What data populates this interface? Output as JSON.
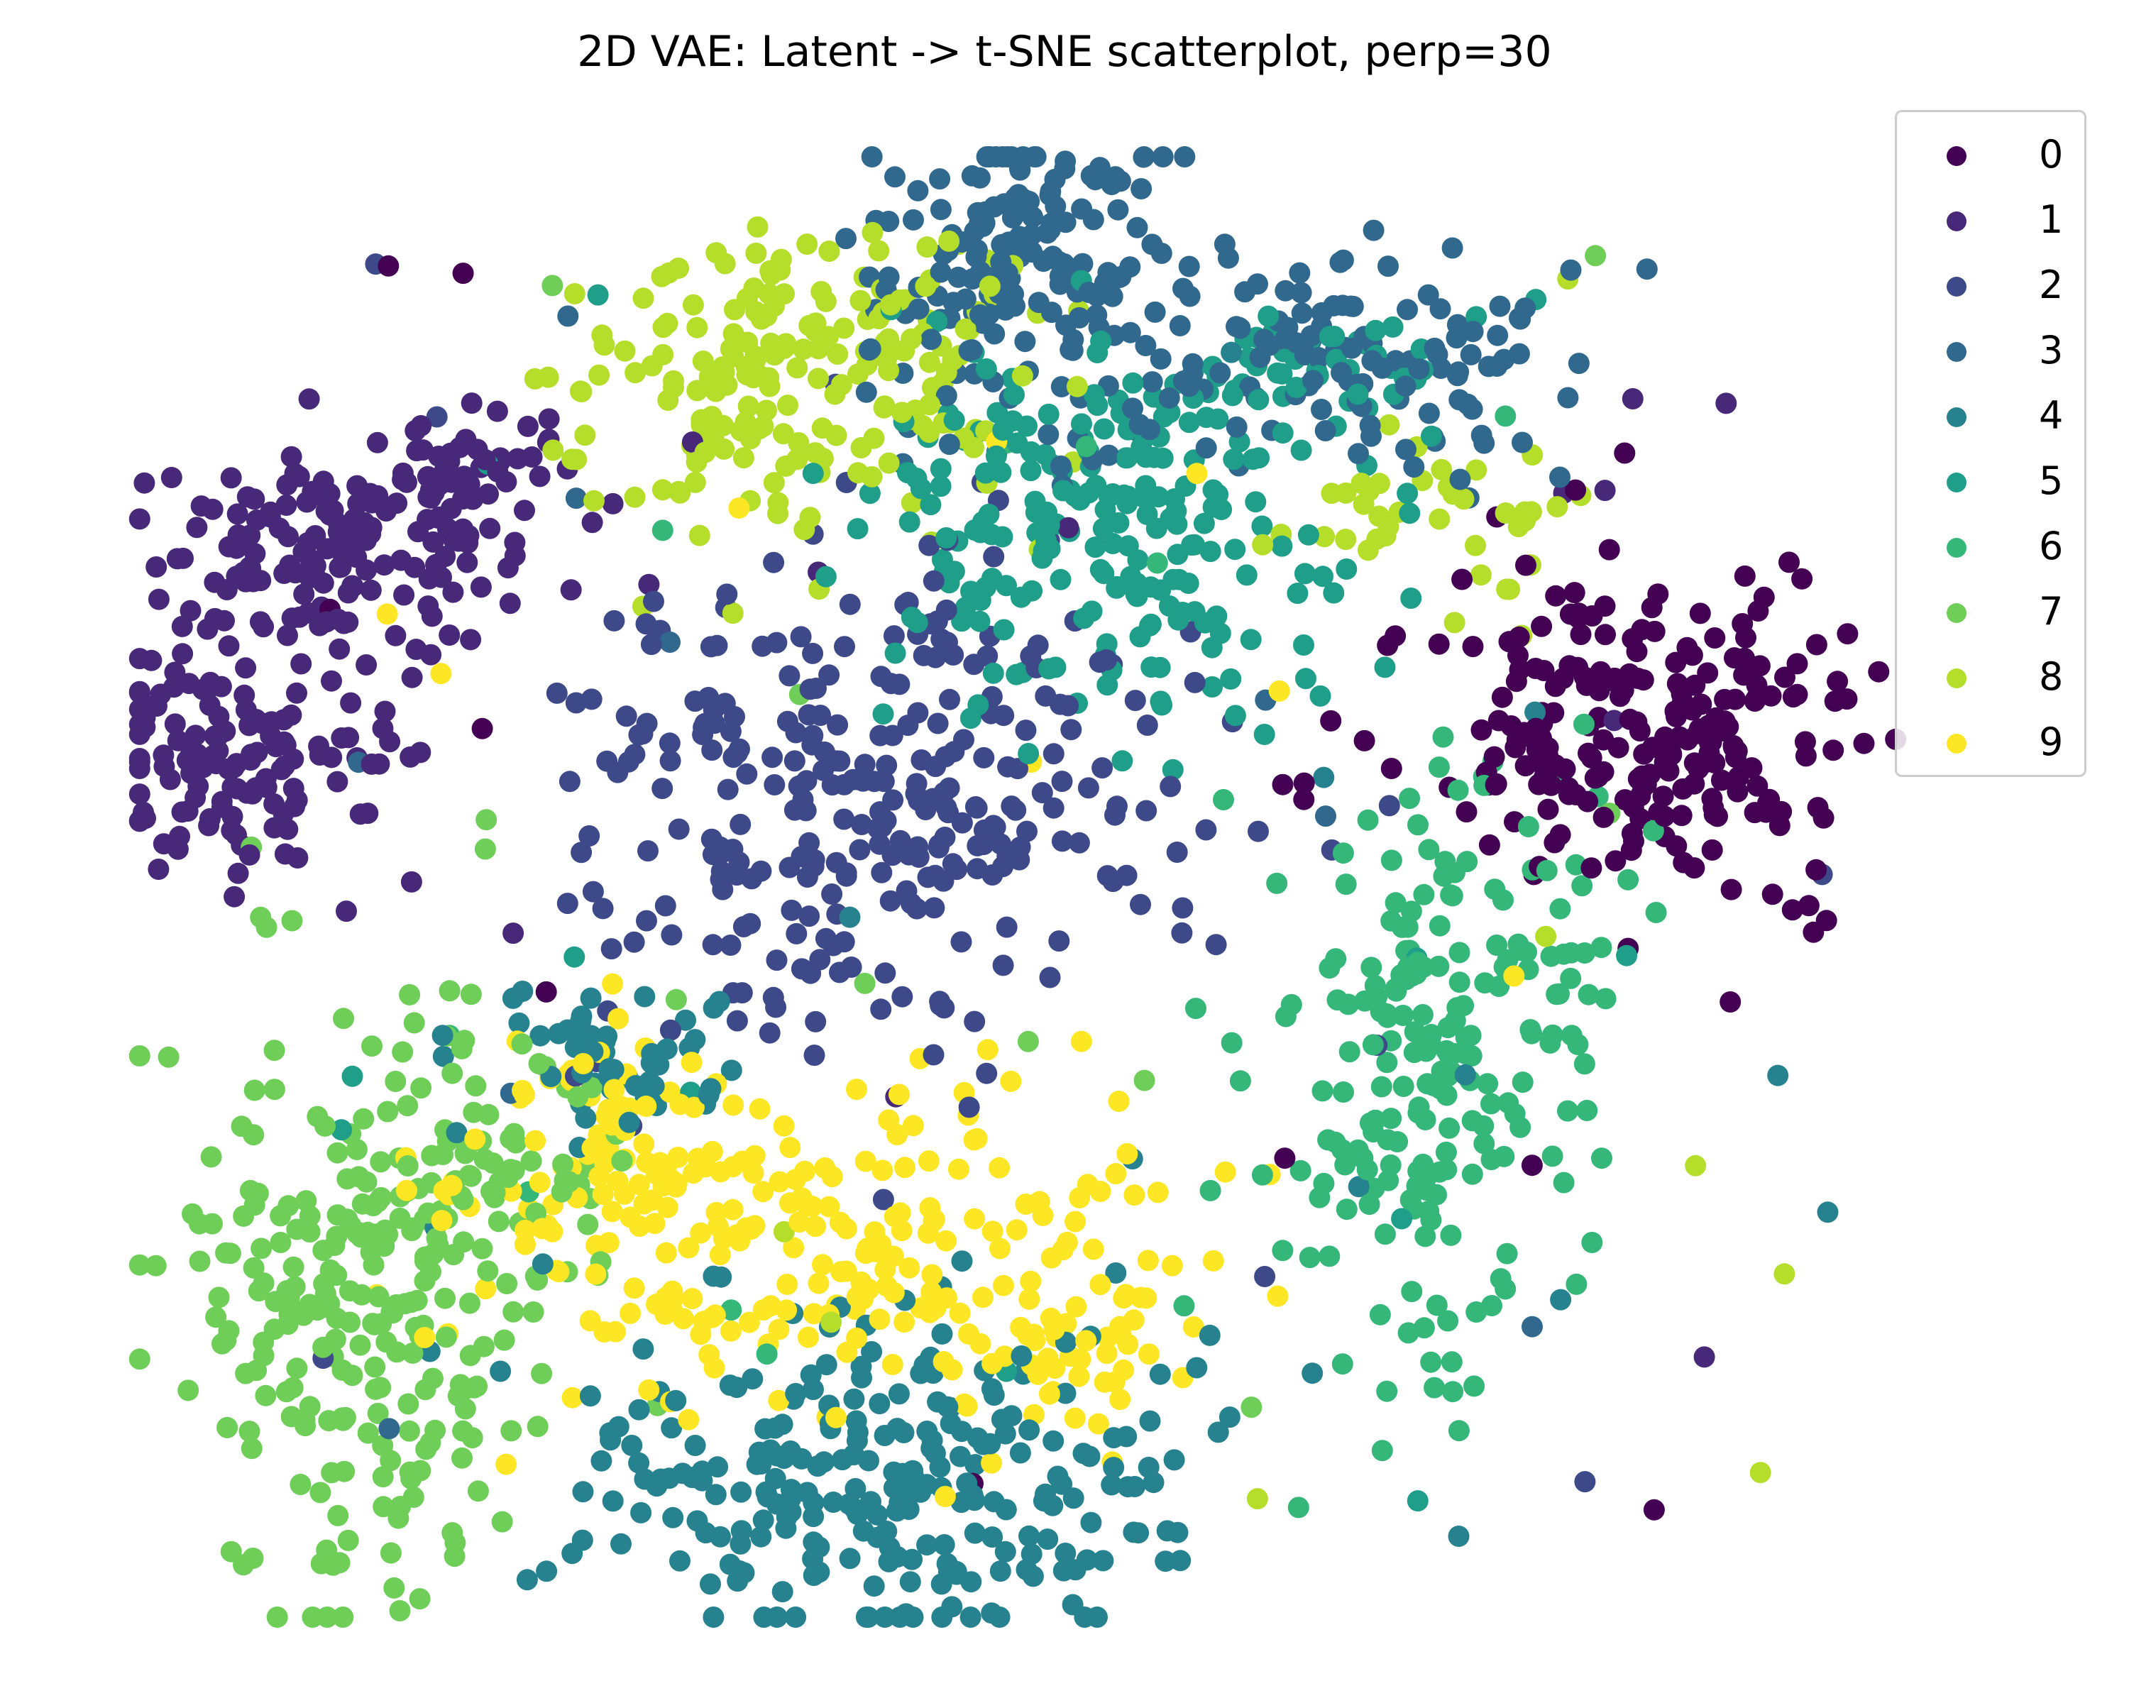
{
  "chart_data": {
    "type": "scatter",
    "title": "2D VAE: Latent -> t-SNE scatterplot, perp=30",
    "xlabel": "",
    "ylabel": "",
    "axes_visible": false,
    "grid": false,
    "legend_placement": "top-right",
    "colormap": "viridis",
    "xlim": [
      -100,
      100
    ],
    "ylim": [
      -100,
      100
    ],
    "series": [
      {
        "name": "0",
        "color": "#440154",
        "clusters": [
          {
            "cx": 58,
            "cy": 21,
            "sx": 13,
            "sy": 12,
            "n": 240
          }
        ]
      },
      {
        "name": "1",
        "color": "#482878",
        "clusters": [
          {
            "cx": -78,
            "cy": 45,
            "sx": 10,
            "sy": 8,
            "n": 160
          },
          {
            "cx": -88,
            "cy": 16,
            "sx": 8,
            "sy": 8,
            "n": 130
          },
          {
            "cx": -63,
            "cy": 56,
            "sx": 5,
            "sy": 4,
            "n": 40
          }
        ]
      },
      {
        "name": "2",
        "color": "#3e4989",
        "clusters": [
          {
            "cx": -20,
            "cy": 12,
            "sx": 15,
            "sy": 16,
            "n": 300
          }
        ]
      },
      {
        "name": "3",
        "color": "#31688e",
        "clusters": [
          {
            "cx": -5,
            "cy": 82,
            "sx": 9,
            "sy": 11,
            "n": 180
          },
          {
            "cx": 29,
            "cy": 72,
            "sx": 13,
            "sy": 8,
            "n": 120
          }
        ]
      },
      {
        "name": "4",
        "color": "#26828e",
        "clusters": [
          {
            "cx": -20,
            "cy": -79,
            "sx": 16,
            "sy": 11,
            "n": 260
          },
          {
            "cx": -48,
            "cy": -23,
            "sx": 7,
            "sy": 5,
            "n": 50
          }
        ]
      },
      {
        "name": "5",
        "color": "#1f9e89",
        "clusters": [
          {
            "cx": 3,
            "cy": 48,
            "sx": 12,
            "sy": 12,
            "n": 230
          },
          {
            "cx": 27,
            "cy": 70,
            "sx": 8,
            "sy": 5,
            "n": 40
          }
        ]
      },
      {
        "name": "6",
        "color": "#35b779",
        "clusters": [
          {
            "cx": 39,
            "cy": -23,
            "sx": 9,
            "sy": 20,
            "n": 220
          }
        ]
      },
      {
        "name": "7",
        "color": "#6ece58",
        "clusters": [
          {
            "cx": -75,
            "cy": -55,
            "sx": 10,
            "sy": 20,
            "n": 260
          },
          {
            "cx": -60,
            "cy": -38,
            "sx": 6,
            "sy": 8,
            "n": 40
          }
        ]
      },
      {
        "name": "8",
        "color": "#b5de2b",
        "clusters": [
          {
            "cx": -29,
            "cy": 69,
            "sx": 12,
            "sy": 9,
            "n": 200
          },
          {
            "cx": 37,
            "cy": 50,
            "sx": 9,
            "sy": 7,
            "n": 40
          }
        ]
      },
      {
        "name": "9",
        "color": "#fde725",
        "clusters": [
          {
            "cx": -26,
            "cy": -47,
            "sx": 20,
            "sy": 10,
            "n": 220
          },
          {
            "cx": -48,
            "cy": -32,
            "sx": 6,
            "sy": 6,
            "n": 50
          },
          {
            "cx": 0,
            "cy": -63,
            "sx": 6,
            "sy": 6,
            "n": 40
          }
        ]
      }
    ]
  }
}
